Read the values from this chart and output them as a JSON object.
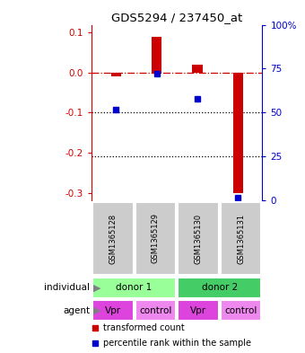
{
  "title": "GDS5294 / 237450_at",
  "samples": [
    "GSM1365128",
    "GSM1365129",
    "GSM1365130",
    "GSM1365131"
  ],
  "bar_values": [
    -0.01,
    0.09,
    0.02,
    -0.3
  ],
  "percentile_values": [
    52,
    72,
    58,
    2
  ],
  "ylim_left": [
    -0.32,
    0.12
  ],
  "ylim_right": [
    0,
    100
  ],
  "left_ticks": [
    0.1,
    0.0,
    -0.1,
    -0.2,
    -0.3
  ],
  "right_ticks": [
    100,
    75,
    50,
    25,
    0
  ],
  "bar_color": "#cc0000",
  "point_color": "#0000cc",
  "individual_labels": [
    "donor 1",
    "donor 2"
  ],
  "individual_color1": "#99ff99",
  "individual_color2": "#44cc66",
  "agent_labels": [
    "Vpr",
    "control",
    "Vpr",
    "control"
  ],
  "agent_color1": "#dd44dd",
  "agent_color2": "#ee88ee",
  "sample_bg_color": "#cccccc",
  "legend_red_label": "transformed count",
  "legend_blue_label": "percentile rank within the sample",
  "individual_row_label": "individual",
  "agent_row_label": "agent",
  "bar_width": 0.25
}
